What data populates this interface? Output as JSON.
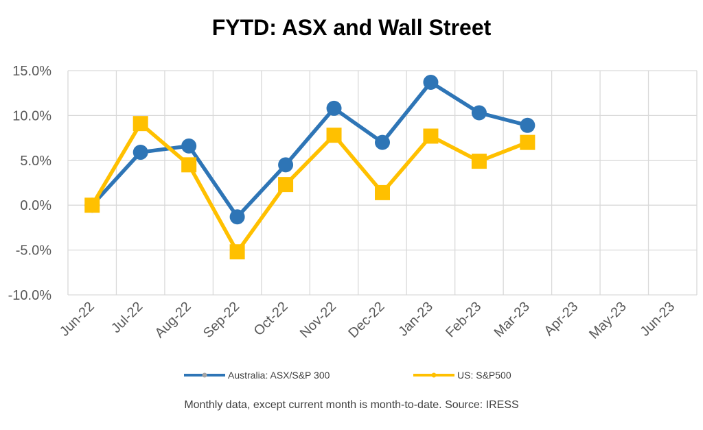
{
  "title": "FYTD: ASX and Wall Street",
  "footnote": "Monthly data, except current month is month-to-date.  Source: IRESS",
  "chart_data": {
    "type": "line",
    "title": "FYTD: ASX and Wall Street",
    "xlabel": "",
    "ylabel": "",
    "categories": [
      "Jun-22",
      "Jul-22",
      "Aug-22",
      "Sep-22",
      "Oct-22",
      "Nov-22",
      "Dec-22",
      "Jan-23",
      "Feb-23",
      "Mar-23",
      "Apr-23",
      "May-23",
      "Jun-23"
    ],
    "ylim": [
      -10,
      15
    ],
    "yticks": [
      15,
      10,
      5,
      0,
      -5,
      -10
    ],
    "ytick_labels": [
      "15.0%",
      "10.0%",
      "5.0%",
      "0.0%",
      "-5.0%",
      "-10.0%"
    ],
    "grid": true,
    "legend_position": "bottom",
    "series": [
      {
        "name": "Australia: ASX/S&P 300",
        "color": "#2E75B6",
        "marker": "circle",
        "values": [
          0.0,
          5.9,
          6.6,
          -1.3,
          4.5,
          10.8,
          7.0,
          13.7,
          10.3,
          8.9,
          null,
          null,
          null
        ]
      },
      {
        "name": "US: S&P500",
        "color": "#FFC000",
        "marker": "square",
        "values": [
          0.0,
          9.1,
          4.5,
          -5.2,
          2.3,
          7.8,
          1.4,
          7.7,
          4.9,
          7.0,
          null,
          null,
          null
        ]
      }
    ]
  }
}
